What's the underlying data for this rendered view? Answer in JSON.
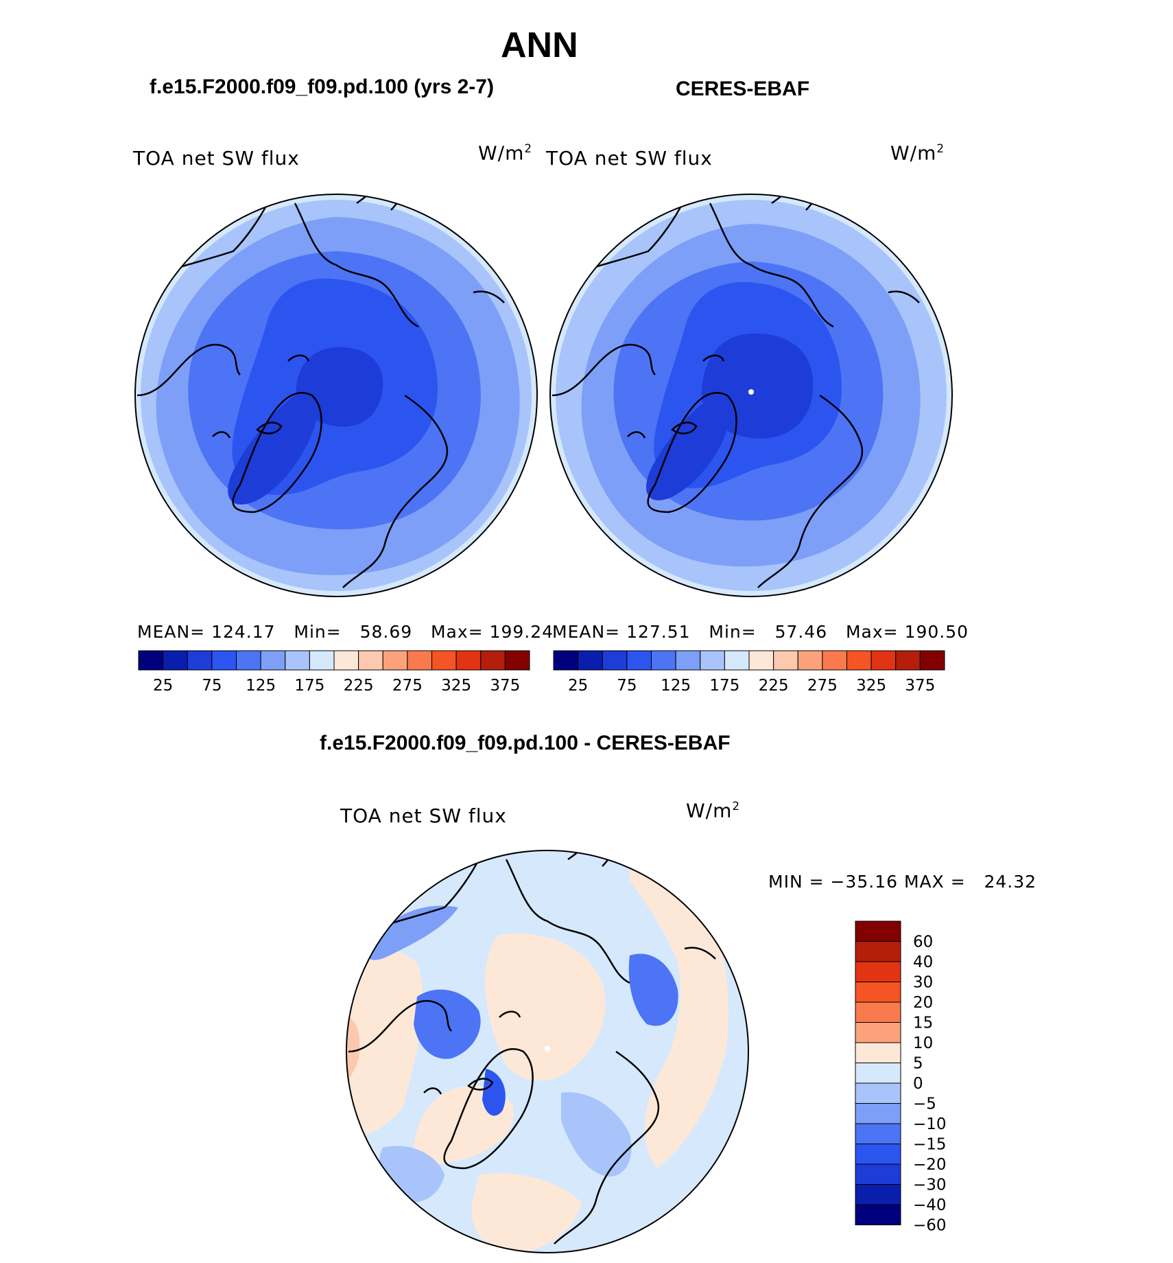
{
  "page": {
    "title": "ANN",
    "left_title": "f.e15.F2000.f09_f09.pd.100 (yrs 2-7)",
    "right_title": "CERES-EBAF",
    "diff_title": "f.e15.F2000.f09_f09.pd.100 - CERES-EBAF"
  },
  "panels": [
    {
      "field": "TOA net SW flux",
      "units_base": "W/m",
      "units_exp": "2",
      "mean_label": "MEAN=",
      "mean": "124.17",
      "min_label": "Min=",
      "min": "58.69",
      "max_label": "Max=",
      "max": "199.24"
    },
    {
      "field": "TOA net SW flux",
      "units_base": "W/m",
      "units_exp": "2",
      "mean_label": "MEAN=",
      "mean": "127.51",
      "min_label": "Min=",
      "min": "57.46",
      "max_label": "Max=",
      "max": "190.50"
    }
  ],
  "abs_colorbar": {
    "colors": [
      "#00007e",
      "#0a1eae",
      "#1e3cd8",
      "#2c55f0",
      "#4c74f4",
      "#7d9ff8",
      "#a8c4fa",
      "#d6e8fc",
      "#fde8d8",
      "#fcc8ae",
      "#fba27c",
      "#f97a4c",
      "#f55424",
      "#e03412",
      "#b41e0a",
      "#820000"
    ],
    "tick_labels": [
      "25",
      "75",
      "125",
      "175",
      "225",
      "275",
      "325",
      "375"
    ]
  },
  "diff": {
    "field": "TOA net SW flux",
    "units_base": "W/m",
    "units_exp": "2",
    "minmax": "MIN = −35.16 MAX =   24.32",
    "colorbar": {
      "colors": [
        "#820000",
        "#b41e0a",
        "#e03412",
        "#f55424",
        "#f97a4c",
        "#fba27c",
        "#fde8d8",
        "#d6e8fc",
        "#a8c4fa",
        "#7d9ff8",
        "#4c74f4",
        "#2c55f0",
        "#1e3cd8",
        "#0a1eae",
        "#00007e"
      ],
      "tick_labels": [
        "60",
        "40",
        "30",
        "20",
        "15",
        "10",
        "5",
        "0",
        "−5",
        "−10",
        "−15",
        "−20",
        "−30",
        "−40",
        "−60"
      ]
    }
  }
}
